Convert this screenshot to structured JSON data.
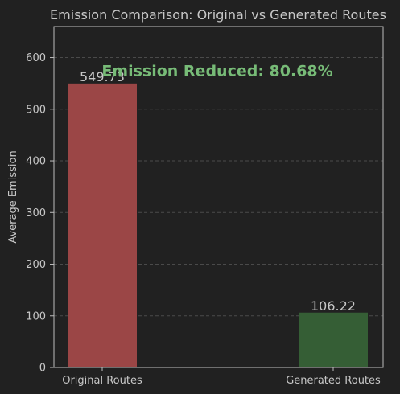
{
  "chart_data": {
    "type": "bar",
    "title": "Emission Comparison: Original vs Generated Routes",
    "xlabel": "",
    "ylabel": "Average Emission",
    "categories": [
      "Original Routes",
      "Generated Routes"
    ],
    "values": [
      549.73,
      106.22
    ],
    "value_labels": [
      "549.73",
      "106.22"
    ],
    "colors": [
      "#9b4646",
      "#355e35"
    ],
    "ylim": [
      0,
      660
    ],
    "yticks": [
      0,
      100,
      200,
      300,
      400,
      500,
      600
    ],
    "grid": true,
    "annotation": {
      "text": "Emission Reduced: 80.68%",
      "color": "#77bb77",
      "y": 575
    },
    "theme": {
      "background": "#212121",
      "axis_color": "#bdbdbd",
      "grid_color": "#4a4a4a",
      "text_color": "#c8c8c8"
    }
  }
}
